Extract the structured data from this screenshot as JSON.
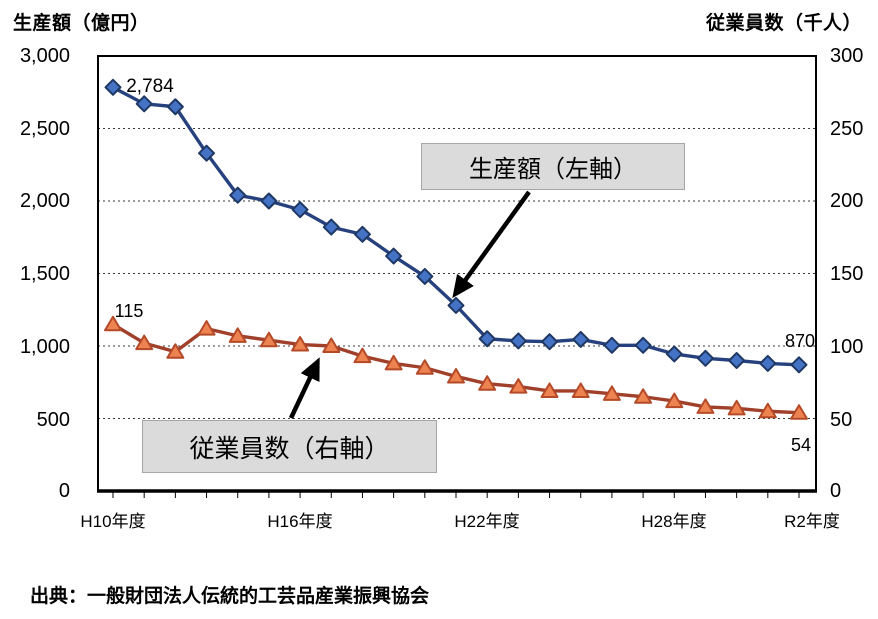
{
  "axes": {
    "left": {
      "title": "生産額（億円）",
      "ticks": [
        "3,000",
        "2,500",
        "2,000",
        "1,500",
        "1,000",
        "500",
        "0"
      ]
    },
    "right": {
      "title": "従業員数（千人）",
      "ticks": [
        "300",
        "250",
        "200",
        "150",
        "100",
        "50",
        "0"
      ]
    },
    "x": {
      "labels": [
        "H10年度",
        "H16年度",
        "H22年度",
        "H28年度",
        "R2年度"
      ]
    }
  },
  "annotations": {
    "production_box": "生産額（左軸）",
    "employees_box": "従業員数（右軸）",
    "production_first": "2,784",
    "employees_first": "115",
    "production_last": "870",
    "employees_last": "54"
  },
  "source": "出典：一般財団法人伝統的工芸品産業振興協会",
  "colors": {
    "production_line": "#26417e",
    "production_marker_fill": "#4472c4",
    "production_marker_stroke": "#1f3864",
    "employees_line": "#a0402a",
    "employees_marker_fill": "#ed8350",
    "employees_marker_stroke": "#b54a28",
    "gridline": "#3a3a3a",
    "frame": "#000000",
    "annotation_box_fill": "#dbdbdb",
    "annotation_box_border": "#a6a6a6"
  },
  "chart_data": {
    "type": "line",
    "categories": [
      "H10",
      "H11",
      "H12",
      "H13",
      "H14",
      "H15",
      "H16",
      "H17",
      "H18",
      "H19",
      "H20",
      "H21",
      "H22",
      "H23",
      "H24",
      "H25",
      "H26",
      "H27",
      "H28",
      "H29",
      "H30",
      "R1",
      "R2"
    ],
    "series": [
      {
        "name": "生産額（左軸）",
        "axis": "left",
        "marker": "diamond",
        "values": [
          2784,
          2670,
          2650,
          2330,
          2040,
          2000,
          1940,
          1820,
          1770,
          1620,
          1480,
          1280,
          1050,
          1035,
          1030,
          1045,
          1005,
          1005,
          945,
          915,
          900,
          880,
          870
        ]
      },
      {
        "name": "従業員数（右軸）",
        "axis": "right",
        "marker": "triangle",
        "values": [
          115,
          102,
          96,
          112,
          107,
          104,
          101,
          100,
          93,
          88,
          85,
          79,
          74,
          72,
          69,
          69,
          67,
          65,
          62,
          58,
          57,
          55,
          54
        ]
      }
    ],
    "left_ylabel": "生産額（億円）",
    "right_ylabel": "従業員数（千人）",
    "left_ylim": [
      0,
      3000
    ],
    "right_ylim": [
      0,
      300
    ],
    "left_ytick_step": 500,
    "right_ytick_step": 50,
    "grid": "horizontal-dashed",
    "legend": "none (arrow callout boxes instead)",
    "x_axis_note": "annual fiscal-year points H10–H30, R1, R2; labels every 6 years"
  }
}
